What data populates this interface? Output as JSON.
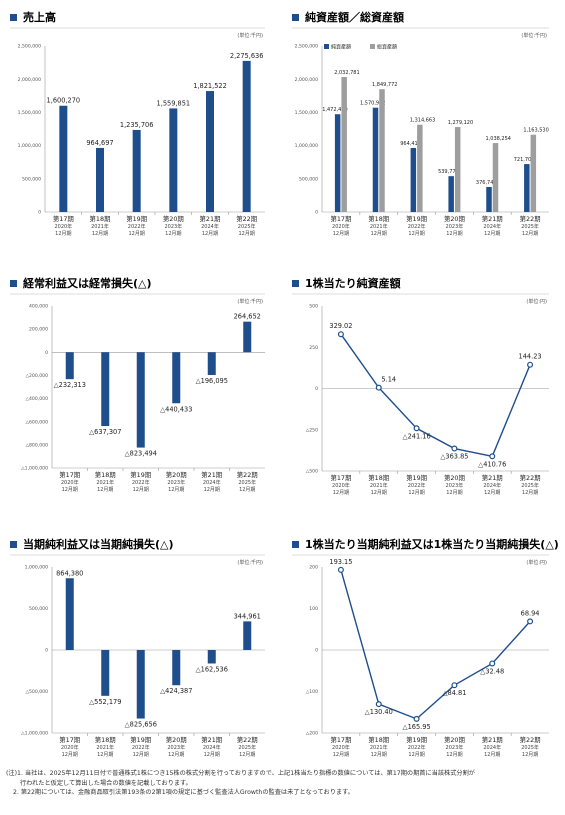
{
  "charts": {
    "sales": {
      "title": "売上高",
      "unit": "(単位:千円)",
      "chart_data": {
        "type": "bar",
        "categories": [
          "第17期",
          "第18期",
          "第19期",
          "第20期",
          "第21期",
          "第22期"
        ],
        "values": [
          1600270,
          964697,
          1235706,
          1559851,
          1821522,
          2275636
        ],
        "ylim": [
          0,
          2500000
        ],
        "ticks": [
          "0",
          "500,000",
          "1,000,000",
          "1,500,000",
          "2,000,000",
          "2,500,000"
        ],
        "labels": [
          "1,600,270",
          "964,697",
          "1,235,706",
          "1,559,851",
          "1,821,522",
          "2,275,636"
        ]
      }
    },
    "assets": {
      "title": "純資産額／総資産額",
      "unit": "(単位:千円)",
      "legend": [
        "純資産額",
        "総資産額"
      ],
      "chart_data": {
        "type": "bar",
        "categories": [
          "第17期",
          "第18期",
          "第19期",
          "第20期",
          "第21期",
          "第22期"
        ],
        "series": [
          {
            "name": "純資産額",
            "values": [
              1472419,
              1570912,
              964412,
              539779,
              376744,
              721705
            ],
            "labels": [
              "1,472,419",
              "1,570,912",
              "964,412",
              "539,779",
              "376,744",
              "721,705"
            ]
          },
          {
            "name": "総資産額",
            "values": [
              2032781,
              1849772,
              1314663,
              1279120,
              1038254,
              1163530
            ],
            "labels": [
              "2,032,781",
              "1,849,772",
              "1,314,663",
              "1,279,120",
              "1,038,254",
              "1,163,530"
            ]
          }
        ],
        "ylim": [
          0,
          2500000
        ],
        "ticks": [
          "0",
          "500,000",
          "1,000,000",
          "1,500,000",
          "2,000,000",
          "2,500,000"
        ]
      }
    },
    "ordinary": {
      "title": "経常利益又は経常損失(△)",
      "unit": "(単位:千円)",
      "chart_data": {
        "type": "bar",
        "categories": [
          "第17期",
          "第18期",
          "第19期",
          "第20期",
          "第21期",
          "第22期"
        ],
        "values": [
          -232313,
          -637307,
          -823494,
          -440433,
          -196095,
          264652
        ],
        "ylim": [
          -1000000,
          400000
        ],
        "ticks": [
          "△1,000,000",
          "△800,000",
          "△600,000",
          "△400,000",
          "△200,000",
          "0",
          "200,000",
          "400,000"
        ],
        "labels": [
          "△232,313",
          "△637,307",
          "△823,494",
          "△440,433",
          "△196,095",
          "264,652"
        ]
      }
    },
    "bps": {
      "title": "1株当たり純資産額",
      "unit": "(単位:円)",
      "chart_data": {
        "type": "line",
        "categories": [
          "第17期",
          "第18期",
          "第19期",
          "第20期",
          "第21期",
          "第22期"
        ],
        "values": [
          329.02,
          5.14,
          -241.16,
          -363.85,
          -410.76,
          144.23
        ],
        "ylim": [
          -500,
          500
        ],
        "ticks": [
          "△500",
          "△250",
          "0",
          "250",
          "500"
        ],
        "labels": [
          "329.02",
          "5.14",
          "△241.16",
          "△363.85",
          "△410.76",
          "144.23"
        ]
      }
    },
    "netincome": {
      "title": "当期純利益又は当期純損失(△)",
      "unit": "(単位:千円)",
      "chart_data": {
        "type": "bar",
        "categories": [
          "第17期",
          "第18期",
          "第19期",
          "第20期",
          "第21期",
          "第22期"
        ],
        "values": [
          864380,
          -552179,
          -825656,
          -424387,
          -162536,
          344961
        ],
        "ylim": [
          -1000000,
          1000000
        ],
        "ticks": [
          "△1,000,000",
          "△500,000",
          "0",
          "500,000",
          "1,000,000"
        ],
        "labels": [
          "864,380",
          "△552,179",
          "△825,656",
          "△424,387",
          "△162,536",
          "344,961"
        ]
      }
    },
    "eps": {
      "title": "1株当たり当期純利益又は1株当たり当期純損失(△)",
      "unit": "(単位:円)",
      "chart_data": {
        "type": "line",
        "categories": [
          "第17期",
          "第18期",
          "第19期",
          "第20期",
          "第21期",
          "第22期"
        ],
        "values": [
          193.15,
          -130.4,
          -165.95,
          -84.81,
          -32.48,
          68.94
        ],
        "ylim": [
          -200,
          200
        ],
        "ticks": [
          "△200",
          "△100",
          "0",
          "100",
          "200"
        ],
        "labels": [
          "193.15",
          "△130.40",
          "△165.95",
          "△84.81",
          "△32.48",
          "68.94"
        ]
      }
    }
  },
  "years": [
    "2020年",
    "2021年",
    "2022年",
    "2023年",
    "2024年",
    "2025年"
  ],
  "month": "12月期",
  "notes": {
    "line1": "(注)1. 当社は、2025年12月11日付で普通株式1株につき15株の株式分割を行っておりますので、上記1株当たり指標の数値については、第17期の期首に当該株式分割が",
    "line2": "行われたと仮定して算出した場合の数値を記載しております。",
    "line3": "2. 第22期については、金融商品取引法第193条の2第1項の規定に基づく監査法人Growthの監査は未了となっております。"
  },
  "colors": {
    "bar": "#1f4e8c",
    "bar2": "#9e9e9e",
    "line": "#1f4e8c",
    "accent": "#1f4e8c"
  }
}
